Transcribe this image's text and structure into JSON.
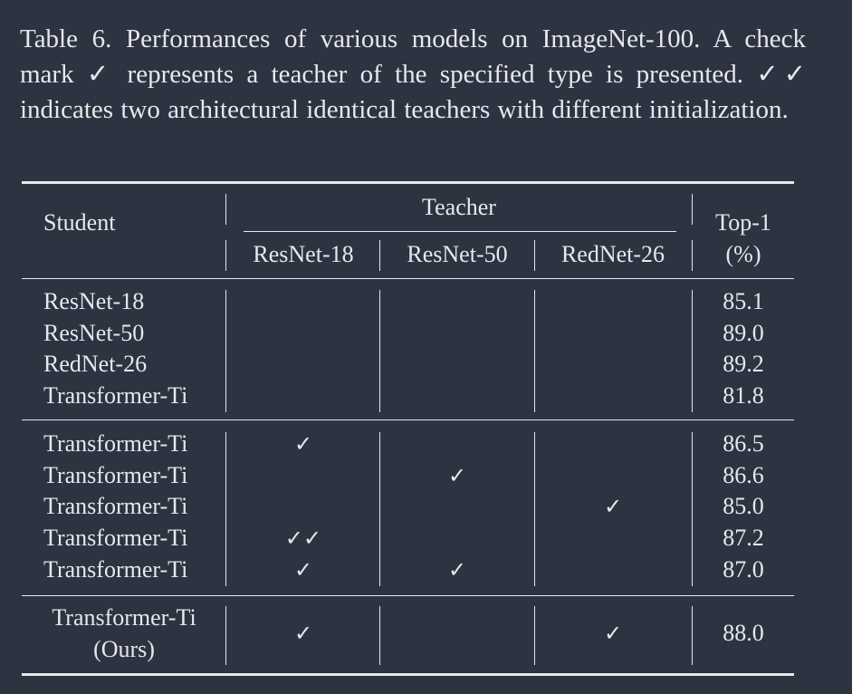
{
  "caption": "Table 6.  Performances of various models on ImageNet-100.  A check mark ✓ represents a teacher of the specified type is presented. ✓✓ indicates two architectural identical teachers with different initialization.",
  "header": {
    "student": "Student",
    "teacher": "Teacher",
    "top1_line1": "Top-1",
    "top1_line2": "(%)",
    "teachers": [
      "ResNet-18",
      "ResNet-50",
      "RedNet-26"
    ]
  },
  "groups": [
    {
      "rows": [
        {
          "student": "ResNet-18",
          "r18": "",
          "r50": "",
          "red26": "",
          "top1": "85.1"
        },
        {
          "student": "ResNet-50",
          "r18": "",
          "r50": "",
          "red26": "",
          "top1": "89.0"
        },
        {
          "student": "RedNet-26",
          "r18": "",
          "r50": "",
          "red26": "",
          "top1": "89.2"
        },
        {
          "student": "Transformer-Ti",
          "r18": "",
          "r50": "",
          "red26": "",
          "top1": "81.8"
        }
      ]
    },
    {
      "rows": [
        {
          "student": "Transformer-Ti",
          "r18": "✓",
          "r50": "",
          "red26": "",
          "top1": "86.5"
        },
        {
          "student": "Transformer-Ti",
          "r18": "",
          "r50": "✓",
          "red26": "",
          "top1": "86.6"
        },
        {
          "student": "Transformer-Ti",
          "r18": "",
          "r50": "",
          "red26": "✓",
          "top1": "85.0"
        },
        {
          "student": "Transformer-Ti",
          "r18": "✓✓",
          "r50": "",
          "red26": "",
          "top1": "87.2"
        },
        {
          "student": "Transformer-Ti",
          "r18": "✓",
          "r50": "✓",
          "red26": "",
          "top1": "87.0"
        }
      ]
    },
    {
      "rows": [
        {
          "student": "Transformer-Ti",
          "student_line2": "(Ours)",
          "r18": "✓",
          "r50": "",
          "red26": "✓",
          "top1": "88.0"
        }
      ]
    }
  ]
}
